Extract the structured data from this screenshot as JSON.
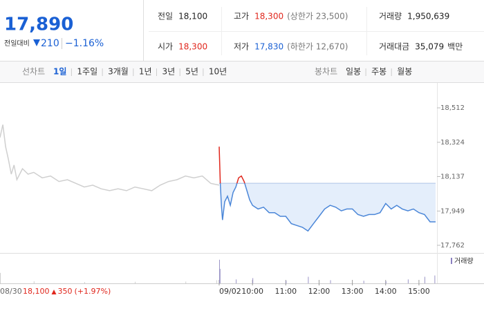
{
  "header": {
    "price": "17,890",
    "change_label": "전일대비",
    "change": "210",
    "change_pct": "−1.16%",
    "stats": [
      {
        "label": "전일",
        "value": "18,100",
        "color": "#222"
      },
      {
        "label": "고가",
        "value": "18,300",
        "color": "#e0261c",
        "extra": "(상한가 23,500)"
      },
      {
        "label": "거래량",
        "value": "1,950,639",
        "color": "#222"
      },
      {
        "label": "시가",
        "value": "18,300",
        "color": "#e0261c"
      },
      {
        "label": "저가",
        "value": "17,830",
        "color": "#1a60d4",
        "extra": "(하한가 12,670)"
      },
      {
        "label": "거래대금",
        "value": "35,079",
        "color": "#222",
        "unit": "백만"
      }
    ]
  },
  "tabs": {
    "line_label": "선차트",
    "line": [
      "1일",
      "1주일",
      "3개월",
      "1년",
      "3년",
      "5년",
      "10년"
    ],
    "candle_label": "봉차트",
    "candle": [
      "일봉",
      "주봉",
      "월봉"
    ]
  },
  "chart_data": {
    "type": "line",
    "ylim": [
      17724,
      18629
    ],
    "yticks": [
      {
        "value": 18512,
        "label": "18,512"
      },
      {
        "value": 18324,
        "label": "18,324"
      },
      {
        "value": 18137,
        "label": "18,137"
      },
      {
        "value": 17949,
        "label": "17,949"
      },
      {
        "value": 17762,
        "label": "17,762"
      }
    ],
    "xlim": [
      0,
      390
    ],
    "xticks": [
      {
        "value": 0,
        "label": "09/02"
      },
      {
        "value": 60,
        "label": "10:00"
      },
      {
        "value": 120,
        "label": "11:00"
      },
      {
        "value": 180,
        "label": "12:00"
      },
      {
        "value": 240,
        "label": "13:00"
      },
      {
        "value": 300,
        "label": "14:00"
      },
      {
        "value": 360,
        "label": "15:00"
      }
    ],
    "baseline": 18100,
    "up_color": "#e0261c",
    "fill_color": "#e4eefb",
    "prev_close": {
      "close": "18,100",
      "change": "350",
      "change_pct": "(+1.97%)"
    },
    "series": [
      {
        "name": "08/30",
        "color": "#cfcfcf",
        "x": [
          0,
          5,
          10,
          15,
          20,
          25,
          30,
          40,
          50,
          60,
          75,
          90,
          105,
          120,
          135,
          150,
          165,
          180,
          195,
          210,
          225,
          240,
          255,
          270,
          285,
          300,
          315,
          330,
          345,
          360,
          375,
          390
        ],
        "values": [
          18350,
          18420,
          18300,
          18230,
          18150,
          18200,
          18120,
          18180,
          18150,
          18160,
          18130,
          18140,
          18110,
          18120,
          18100,
          18080,
          18090,
          18070,
          18060,
          18070,
          18060,
          18080,
          18070,
          18060,
          18090,
          18110,
          18120,
          18140,
          18130,
          18140,
          18100,
          18090
        ]
      },
      {
        "name": "09/02",
        "color": "#4a86d8",
        "x": [
          0,
          2,
          4,
          6,
          10,
          15,
          20,
          25,
          30,
          35,
          40,
          45,
          50,
          55,
          60,
          70,
          80,
          90,
          100,
          110,
          120,
          130,
          140,
          150,
          160,
          170,
          180,
          190,
          200,
          210,
          220,
          230,
          240,
          250,
          260,
          270,
          280,
          290,
          300,
          310,
          320,
          330,
          340,
          350,
          360,
          370,
          380,
          390
        ],
        "values": [
          18300,
          18100,
          17980,
          17900,
          18000,
          18030,
          17980,
          18050,
          18080,
          18130,
          18140,
          18110,
          18060,
          18010,
          17980,
          17960,
          17970,
          17940,
          17940,
          17920,
          17920,
          17880,
          17870,
          17860,
          17840,
          17880,
          17920,
          17960,
          17980,
          17970,
          17950,
          17960,
          17960,
          17930,
          17920,
          17930,
          17930,
          17940,
          17990,
          17960,
          17980,
          17960,
          17950,
          17960,
          17940,
          17930,
          17890,
          17890
        ]
      }
    ],
    "volume": {
      "name": "거래량",
      "ylim": [
        0,
        100
      ],
      "prev": {
        "x": [
          0,
          60,
          150,
          240,
          330,
          385
        ],
        "values": [
          40,
          8,
          5,
          6,
          7,
          12
        ]
      },
      "today": {
        "x": [
          0,
          1,
          30,
          60,
          120,
          160,
          200,
          260,
          300,
          340,
          370,
          388
        ],
        "values": [
          90,
          55,
          15,
          20,
          10,
          25,
          12,
          10,
          8,
          15,
          25,
          30
        ]
      }
    }
  }
}
